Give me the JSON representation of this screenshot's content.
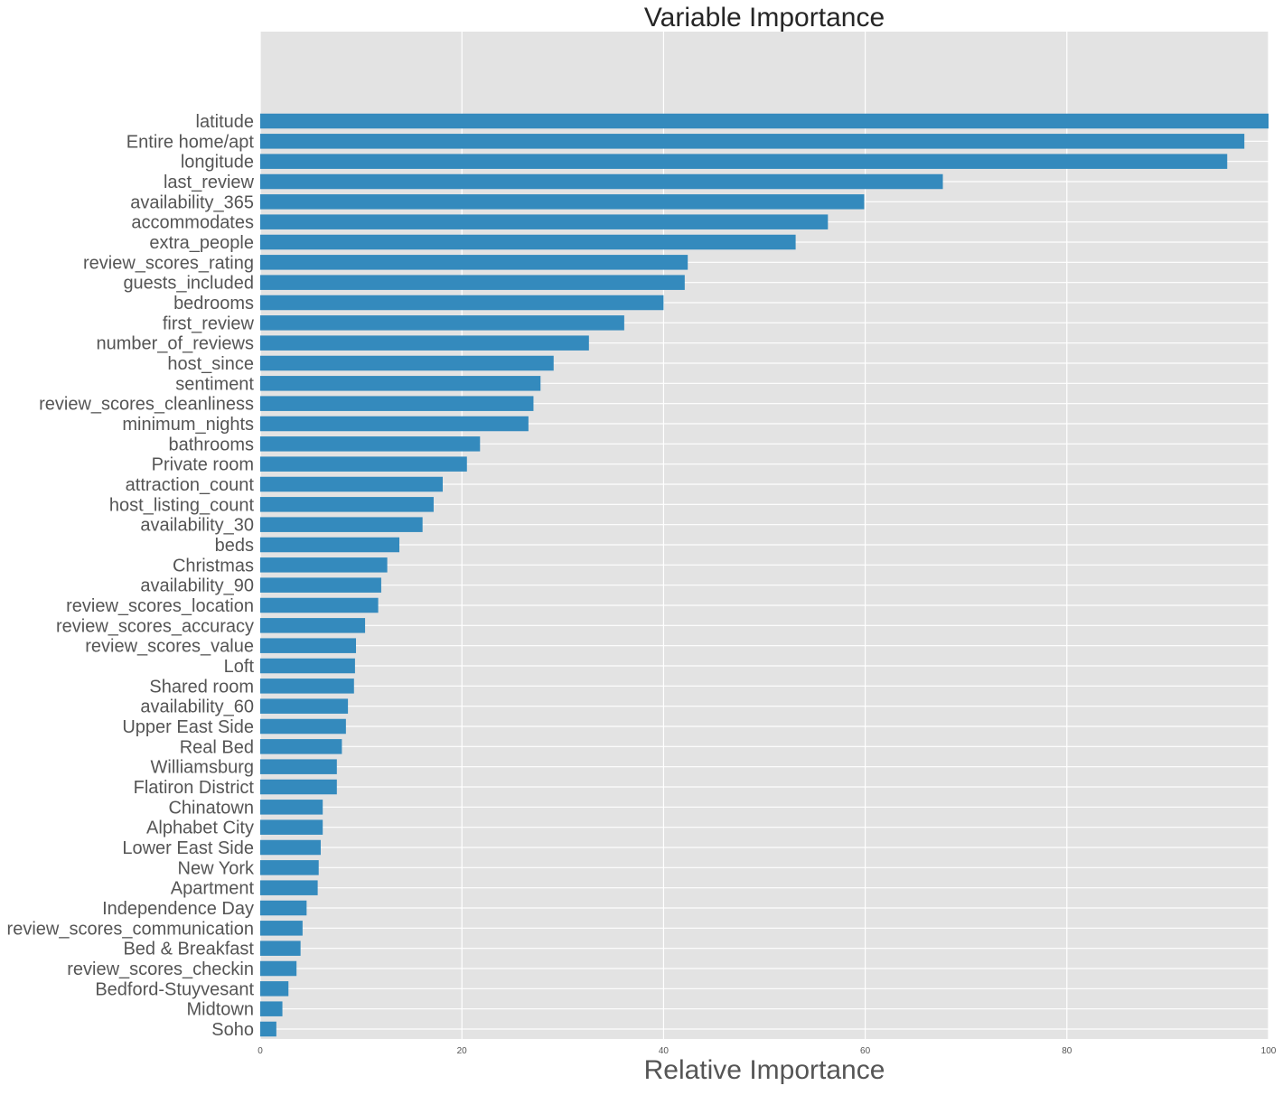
{
  "colors": {
    "plot_background": "#e3e3e3",
    "grid": "#ffffff",
    "bar": "#348abd",
    "title": "#262626",
    "label": "#555555"
  },
  "chart_data": {
    "type": "bar",
    "orientation": "horizontal",
    "title": "Variable Importance",
    "xlabel": "Relative Importance",
    "ylabel": "",
    "xlim": [
      0,
      100
    ],
    "xticks": [
      0,
      20,
      40,
      60,
      80,
      100
    ],
    "grid": true,
    "categories": [
      "latitude",
      "Entire home/apt",
      "longitude",
      "last_review",
      "availability_365",
      "accommodates",
      "extra_people",
      "review_scores_rating",
      "guests_included",
      "bedrooms",
      "first_review",
      "number_of_reviews",
      "host_since",
      "sentiment",
      "review_scores_cleanliness",
      "minimum_nights",
      "bathrooms",
      "Private room",
      "attraction_count",
      "host_listing_count",
      "availability_30",
      "beds",
      "Christmas",
      "availability_90",
      "review_scores_location",
      "review_scores_accuracy",
      "review_scores_value",
      "Loft",
      "Shared room",
      "availability_60",
      "Upper East Side",
      "Real Bed",
      "Williamsburg",
      "Flatiron District",
      "Chinatown",
      "Alphabet City",
      "Lower East Side",
      "New York",
      "Apartment",
      "Independence Day",
      "review_scores_communication",
      "Bed & Breakfast",
      "review_scores_checkin",
      "Bedford-Stuyvesant",
      "Midtown",
      "Soho"
    ],
    "values": [
      100,
      97.6,
      95.9,
      67.7,
      59.9,
      56.3,
      53.1,
      42.4,
      42.1,
      40.0,
      36.1,
      32.6,
      29.1,
      27.8,
      27.1,
      26.6,
      21.8,
      20.5,
      18.1,
      17.2,
      16.1,
      13.8,
      12.6,
      12.0,
      11.7,
      10.4,
      9.5,
      9.4,
      9.3,
      8.7,
      8.5,
      8.1,
      7.6,
      7.6,
      6.2,
      6.2,
      6.0,
      5.8,
      5.7,
      4.6,
      4.2,
      4.0,
      3.6,
      2.8,
      2.2,
      1.6
    ]
  }
}
